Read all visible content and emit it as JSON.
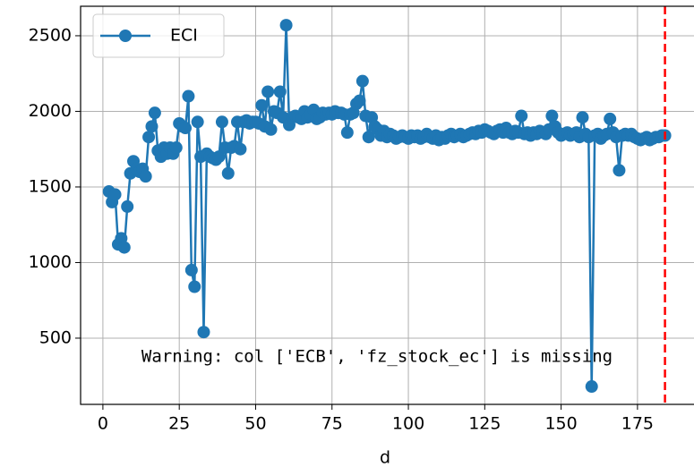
{
  "chart_data": {
    "type": "line",
    "xlabel": "d",
    "x": [
      2,
      3,
      4,
      5,
      6,
      7,
      8,
      9,
      10,
      11,
      12,
      13,
      14,
      15,
      16,
      17,
      18,
      19,
      20,
      21,
      22,
      23,
      24,
      25,
      26,
      27,
      28,
      29,
      30,
      31,
      32,
      33,
      34,
      35,
      36,
      37,
      38,
      39,
      40,
      41,
      42,
      43,
      44,
      45,
      46,
      47,
      48,
      49,
      50,
      51,
      52,
      53,
      54,
      55,
      56,
      57,
      58,
      59,
      60,
      61,
      62,
      63,
      64,
      65,
      66,
      67,
      68,
      69,
      70,
      71,
      72,
      73,
      74,
      75,
      76,
      77,
      78,
      79,
      80,
      81,
      82,
      83,
      84,
      85,
      86,
      87,
      88,
      89,
      90,
      91,
      92,
      93,
      94,
      95,
      96,
      97,
      98,
      99,
      100,
      101,
      102,
      103,
      104,
      105,
      106,
      107,
      108,
      109,
      110,
      111,
      112,
      113,
      114,
      115,
      116,
      117,
      118,
      119,
      120,
      121,
      122,
      123,
      124,
      125,
      126,
      127,
      128,
      129,
      130,
      131,
      132,
      133,
      134,
      135,
      136,
      137,
      138,
      139,
      140,
      141,
      142,
      143,
      144,
      145,
      146,
      147,
      148,
      149,
      150,
      151,
      152,
      153,
      154,
      155,
      156,
      157,
      158,
      159,
      160,
      161,
      162,
      163,
      164,
      165,
      166,
      167,
      168,
      169,
      170,
      171,
      172,
      173,
      174,
      175,
      176,
      177,
      178,
      179,
      180,
      181,
      182,
      183,
      184
    ],
    "series": [
      {
        "name": "ECI",
        "color": "#1f77b4",
        "values": [
          1470,
          1400,
          1450,
          1120,
          1160,
          1100,
          1370,
          1590,
          1670,
          1620,
          1600,
          1620,
          1570,
          1830,
          1900,
          1990,
          1740,
          1700,
          1760,
          1720,
          1760,
          1720,
          1760,
          1920,
          1900,
          1890,
          2100,
          950,
          840,
          1930,
          1700,
          540,
          1720,
          1700,
          1690,
          1680,
          1700,
          1930,
          1760,
          1590,
          1760,
          1770,
          1930,
          1750,
          1930,
          1940,
          1920,
          1930,
          1930,
          1920,
          2040,
          1900,
          2130,
          1880,
          2000,
          1990,
          2130,
          1960,
          2570,
          1910,
          1960,
          1970,
          1960,
          1950,
          2000,
          1960,
          1980,
          2010,
          1950,
          1960,
          1990,
          1980,
          1990,
          1980,
          2000,
          1990,
          1990,
          1980,
          1860,
          1980,
          1990,
          2050,
          2070,
          2200,
          1970,
          1830,
          1960,
          1900,
          1880,
          1840,
          1870,
          1830,
          1850,
          1840,
          1820,
          1830,
          1840,
          1830,
          1820,
          1840,
          1830,
          1840,
          1820,
          1830,
          1850,
          1830,
          1820,
          1840,
          1810,
          1830,
          1820,
          1840,
          1850,
          1830,
          1840,
          1850,
          1830,
          1840,
          1850,
          1860,
          1850,
          1870,
          1860,
          1880,
          1870,
          1860,
          1850,
          1870,
          1880,
          1860,
          1890,
          1860,
          1850,
          1870,
          1860,
          1970,
          1850,
          1860,
          1840,
          1860,
          1850,
          1870,
          1860,
          1850,
          1880,
          1970,
          1900,
          1860,
          1840,
          1850,
          1860,
          1840,
          1850,
          1860,
          1830,
          1960,
          1850,
          1830,
          180,
          1840,
          1850,
          1820,
          1840,
          1850,
          1950,
          1860,
          1830,
          1610,
          1840,
          1850,
          1840,
          1850,
          1830,
          1820,
          1810,
          1820,
          1830,
          1810,
          1820,
          1830,
          1830,
          1840,
          1840
        ]
      }
    ],
    "xlim": [
      -7.3,
      193.5
    ],
    "ylim": [
      62,
      2695
    ],
    "xticks": [
      0,
      25,
      50,
      75,
      100,
      125,
      150,
      175
    ],
    "yticks": [
      500,
      1000,
      1500,
      2000,
      2500
    ],
    "grid": true,
    "legend": "upper left",
    "vline": {
      "x": 184,
      "color": "#ff0000"
    },
    "annotation": {
      "text": "Warning: col ['ECB', 'fz_stock_ec'] is missing",
      "x": 12.6,
      "y": 376
    }
  }
}
